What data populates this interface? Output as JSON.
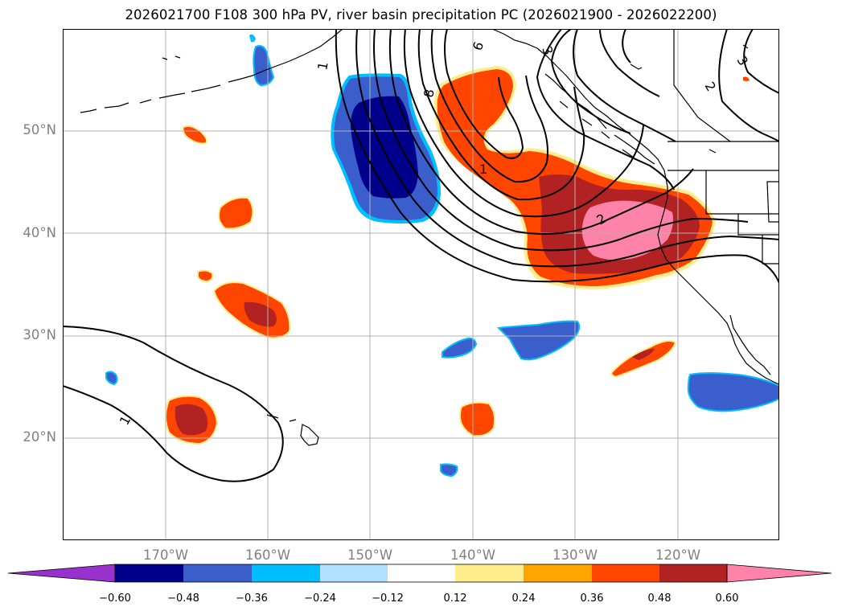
{
  "title": "2026021700 F108 300 hPa PV, river basin precipitation PC (2026021900 - 2026022200)",
  "axes": {
    "lat_labels": [
      "50°N",
      "40°N",
      "30°N",
      "20°N"
    ],
    "lon_labels": [
      "170°W",
      "160°W",
      "150°W",
      "140°W",
      "130°W",
      "120°W"
    ]
  },
  "colorbar": {
    "ticks": [
      "−0.60",
      "−0.48",
      "−0.36",
      "−0.24",
      "−0.12",
      "0.12",
      "0.24",
      "0.36",
      "0.48",
      "0.60"
    ],
    "colors": {
      "under": "#9932cc",
      "c_minus_060": "#00008b",
      "c_minus_048": "#3a5fcd",
      "c_minus_036": "#00bfff",
      "c_minus_024": "#b0e2ff",
      "c_zero": "#ffffff",
      "c_plus_012": "#ffec8b",
      "c_plus_024": "#ffa500",
      "c_plus_036": "#ff4500",
      "c_plus_048": "#b22222",
      "over": "#ff82ab"
    }
  },
  "contour_labels": [
    "1",
    "1",
    "1",
    "2",
    "2",
    "3",
    "3",
    "6",
    "8"
  ]
}
